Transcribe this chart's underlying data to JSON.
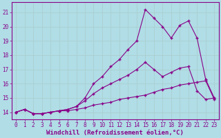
{
  "xlabel": "Windchill (Refroidissement éolien,°C)",
  "background_color": "#b0dde6",
  "grid_color": "#c8eef5",
  "line_color": "#880088",
  "xlim": [
    -0.5,
    23.5
  ],
  "ylim": [
    13.5,
    21.7
  ],
  "yticks": [
    14,
    15,
    16,
    17,
    18,
    19,
    20,
    21
  ],
  "xticks": [
    0,
    1,
    2,
    3,
    4,
    5,
    6,
    7,
    8,
    9,
    10,
    11,
    12,
    13,
    14,
    15,
    16,
    17,
    18,
    19,
    20,
    21,
    22,
    23
  ],
  "line1_x": [
    0,
    1,
    2,
    3,
    4,
    5,
    6,
    7,
    8,
    9,
    10,
    11,
    12,
    13,
    14,
    15,
    16,
    17,
    18,
    19,
    20,
    21,
    22,
    23
  ],
  "line1_y": [
    14.0,
    14.2,
    13.9,
    13.9,
    14.0,
    14.1,
    14.1,
    14.2,
    14.3,
    14.5,
    14.6,
    14.7,
    14.9,
    15.0,
    15.1,
    15.2,
    15.4,
    15.6,
    15.7,
    15.9,
    16.0,
    16.1,
    16.2,
    14.9
  ],
  "line2_x": [
    0,
    1,
    2,
    3,
    4,
    5,
    6,
    7,
    8,
    9,
    10,
    11,
    12,
    13,
    14,
    15,
    16,
    17,
    18,
    19,
    20,
    21,
    22,
    23
  ],
  "line2_y": [
    14.0,
    14.2,
    13.9,
    13.9,
    14.0,
    14.1,
    14.2,
    14.4,
    14.8,
    15.3,
    15.7,
    16.0,
    16.3,
    16.6,
    17.0,
    17.5,
    17.0,
    16.5,
    16.8,
    17.1,
    17.2,
    15.5,
    14.9,
    15.0
  ],
  "line3_x": [
    0,
    1,
    2,
    3,
    4,
    5,
    6,
    7,
    8,
    9,
    10,
    11,
    12,
    13,
    14,
    15,
    16,
    17,
    18,
    19,
    20,
    21,
    22,
    23
  ],
  "line3_y": [
    14.0,
    14.2,
    13.9,
    13.9,
    14.0,
    14.1,
    14.2,
    14.4,
    15.0,
    16.0,
    16.5,
    17.2,
    17.7,
    18.4,
    19.0,
    21.2,
    20.6,
    20.0,
    19.2,
    20.1,
    20.4,
    19.2,
    16.3,
    15.0
  ],
  "marker": "+",
  "markersize": 3.5,
  "linewidth": 0.8,
  "xlabel_fontsize": 6.5,
  "tick_fontsize": 5.5
}
